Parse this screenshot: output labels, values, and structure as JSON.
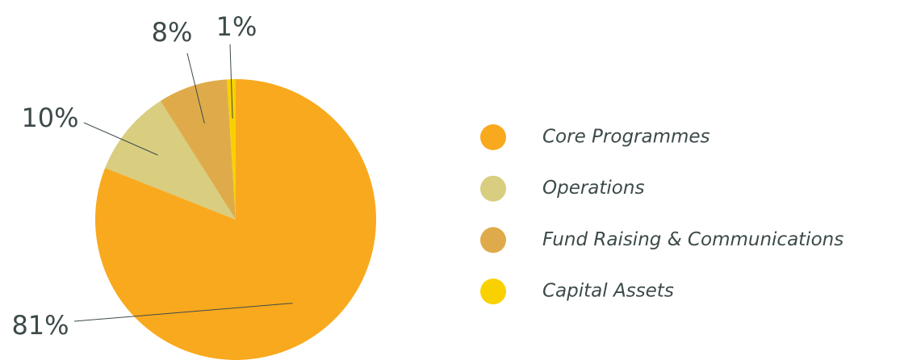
{
  "chart_data": {
    "type": "pie",
    "categories": [
      "Core Programmes",
      "Operations",
      "Fund Raising & Communications",
      "Capital Assets"
    ],
    "values": [
      81,
      10,
      8,
      1
    ],
    "value_labels": [
      "81%",
      "10%",
      "8%",
      "1%"
    ],
    "colors": [
      "#f9a91d",
      "#d9cd80",
      "#dfab4a",
      "#f9d100"
    ],
    "legend": "right"
  }
}
